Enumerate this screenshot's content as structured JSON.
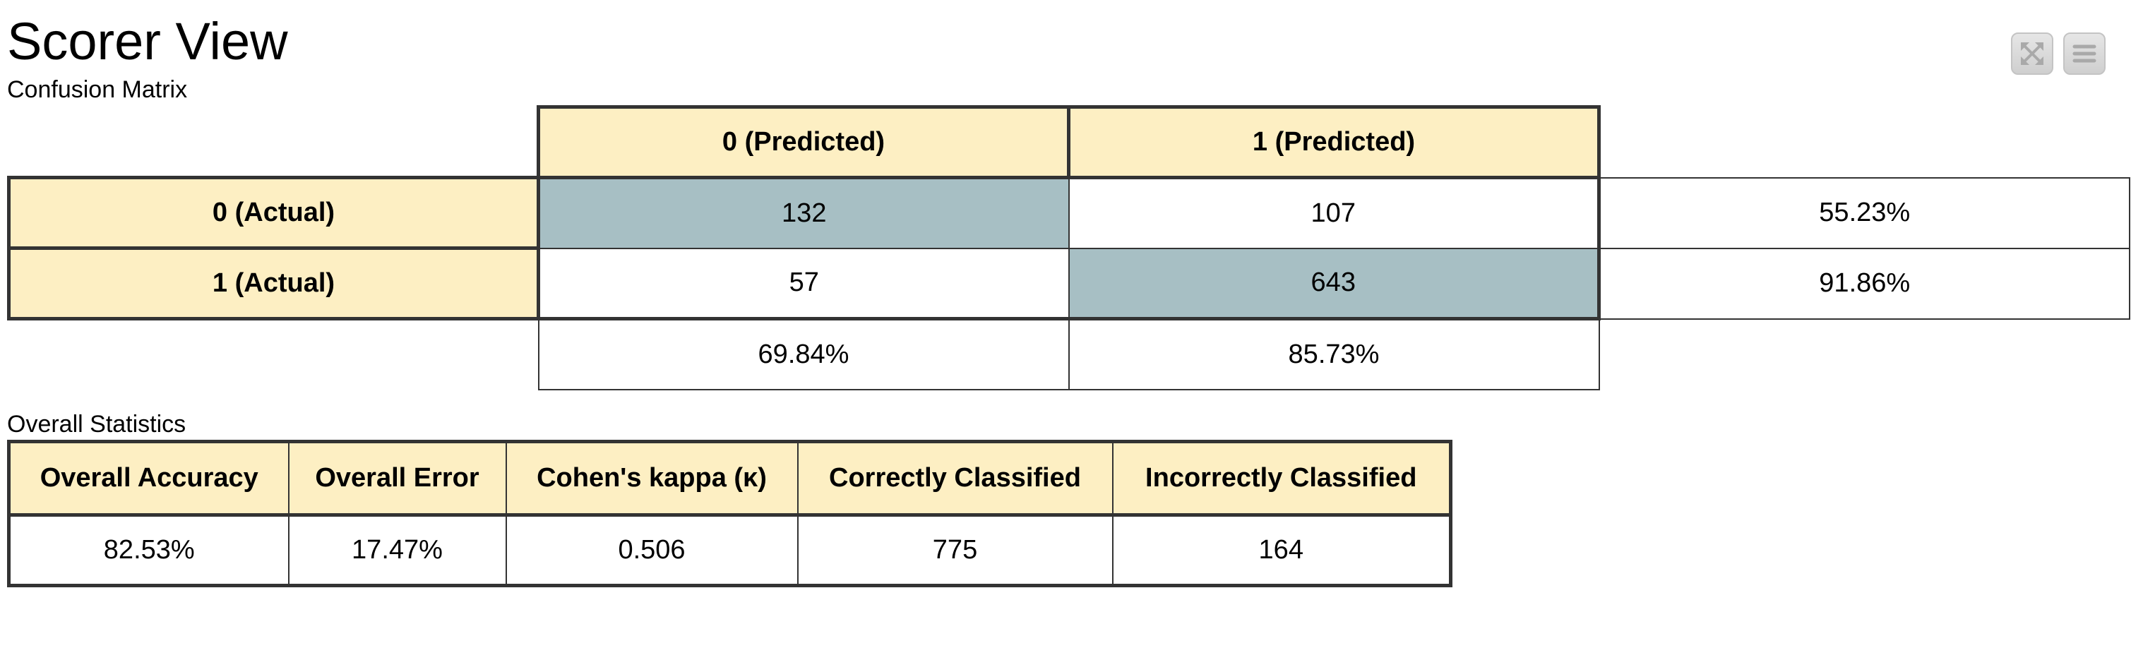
{
  "page": {
    "title": "Scorer View"
  },
  "toolbar": {
    "buttons": [
      {
        "icon": "expand-icon"
      },
      {
        "icon": "menu-icon"
      }
    ]
  },
  "confusion_matrix": {
    "label": "Confusion Matrix",
    "column_headers": [
      "0 (Predicted)",
      "1 (Predicted)"
    ],
    "rows": [
      {
        "label": "0 (Actual)",
        "values": [
          "132",
          "107"
        ],
        "row_rate": "55.23%"
      },
      {
        "label": "1 (Actual)",
        "values": [
          "57",
          "643"
        ],
        "row_rate": "91.86%"
      }
    ],
    "column_rates": [
      "69.84%",
      "85.73%"
    ],
    "colors": {
      "header_bg": "#fdefc3",
      "diagonal_bg": "#a7bfc4",
      "border": "#333333"
    }
  },
  "overall_statistics": {
    "label": "Overall Statistics",
    "headers": [
      "Overall Accuracy",
      "Overall Error",
      "Cohen's kappa (κ)",
      "Correctly Classified",
      "Incorrectly Classified"
    ],
    "values": [
      "82.53%",
      "17.47%",
      "0.506",
      "775",
      "164"
    ]
  }
}
